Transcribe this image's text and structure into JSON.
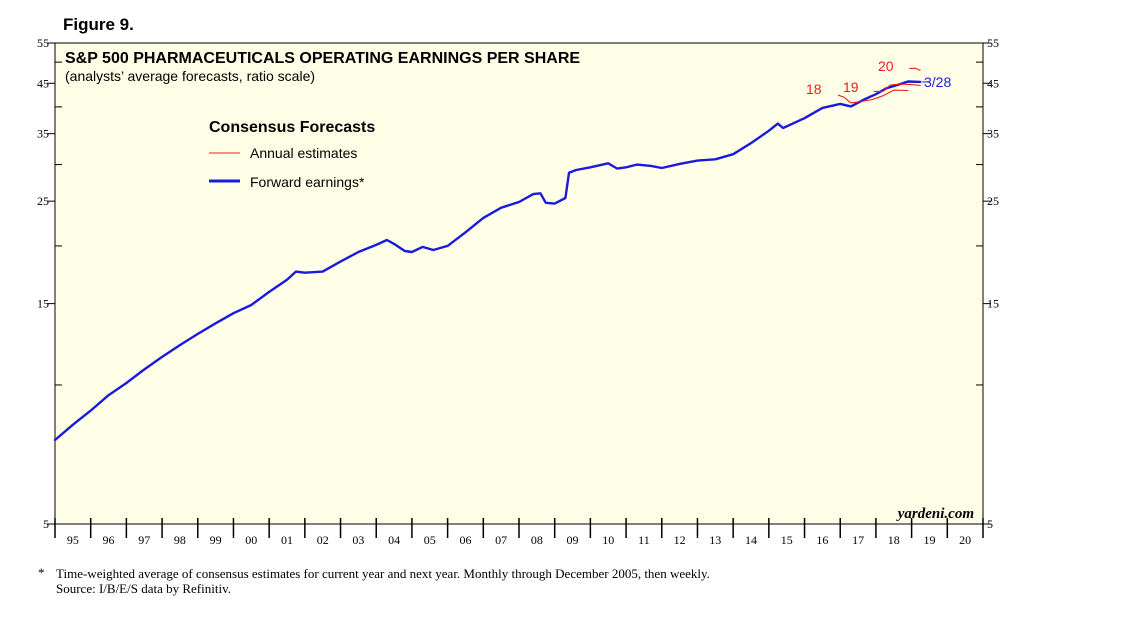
{
  "figure_label": "Figure 9.",
  "chart_data": {
    "type": "line",
    "title": "S&P 500 PHARMACEUTICALS OPERATING EARNINGS PER SHARE",
    "subtitle": "(analysts’ average forecasts, ratio scale)",
    "scale": "log",
    "ylim": [
      5,
      55
    ],
    "y_ticks": [
      5,
      15,
      25,
      35,
      45,
      55
    ],
    "y_tick_labels": [
      "5",
      "15",
      "25",
      "35",
      "45",
      "55"
    ],
    "x_range": [
      1995,
      2021
    ],
    "x_tick_labels": [
      "95",
      "96",
      "97",
      "98",
      "99",
      "00",
      "01",
      "02",
      "03",
      "04",
      "05",
      "06",
      "07",
      "08",
      "09",
      "10",
      "11",
      "12",
      "13",
      "14",
      "15",
      "16",
      "17",
      "18",
      "19",
      "20"
    ],
    "legend": {
      "title": "Consensus Forecasts",
      "entries": [
        {
          "label": "Annual estimates",
          "color": "#e8201c"
        },
        {
          "label": "Forward earnings*",
          "color": "#1a1adc"
        }
      ]
    },
    "series": [
      {
        "name": "Forward earnings*",
        "color": "#1a1adc",
        "points": [
          [
            1995.0,
            7.6
          ],
          [
            1995.5,
            8.2
          ],
          [
            1996.0,
            8.8
          ],
          [
            1996.5,
            9.5
          ],
          [
            1997.0,
            10.1
          ],
          [
            1997.5,
            10.8
          ],
          [
            1998.0,
            11.5
          ],
          [
            1998.5,
            12.2
          ],
          [
            1999.0,
            12.9
          ],
          [
            1999.5,
            13.6
          ],
          [
            2000.0,
            14.3
          ],
          [
            2000.5,
            14.9
          ],
          [
            2001.0,
            15.9
          ],
          [
            2001.5,
            16.9
          ],
          [
            2001.75,
            17.6
          ],
          [
            2002.0,
            17.5
          ],
          [
            2002.5,
            17.6
          ],
          [
            2003.0,
            18.5
          ],
          [
            2003.5,
            19.4
          ],
          [
            2004.0,
            20.1
          ],
          [
            2004.3,
            20.6
          ],
          [
            2004.5,
            20.2
          ],
          [
            2004.8,
            19.5
          ],
          [
            2005.0,
            19.4
          ],
          [
            2005.3,
            19.9
          ],
          [
            2005.6,
            19.6
          ],
          [
            2006.0,
            20.0
          ],
          [
            2006.5,
            21.4
          ],
          [
            2007.0,
            23.0
          ],
          [
            2007.5,
            24.2
          ],
          [
            2008.0,
            24.9
          ],
          [
            2008.4,
            25.9
          ],
          [
            2008.6,
            26.0
          ],
          [
            2008.75,
            24.8
          ],
          [
            2009.0,
            24.7
          ],
          [
            2009.3,
            25.4
          ],
          [
            2009.4,
            28.8
          ],
          [
            2009.6,
            29.2
          ],
          [
            2010.0,
            29.6
          ],
          [
            2010.5,
            30.2
          ],
          [
            2010.75,
            29.4
          ],
          [
            2011.0,
            29.6
          ],
          [
            2011.3,
            30.0
          ],
          [
            2011.7,
            29.8
          ],
          [
            2012.0,
            29.5
          ],
          [
            2012.5,
            30.1
          ],
          [
            2013.0,
            30.6
          ],
          [
            2013.5,
            30.8
          ],
          [
            2014.0,
            31.6
          ],
          [
            2014.5,
            33.4
          ],
          [
            2015.0,
            35.5
          ],
          [
            2015.25,
            36.8
          ],
          [
            2015.4,
            36.0
          ],
          [
            2016.0,
            37.8
          ],
          [
            2016.5,
            39.8
          ],
          [
            2017.0,
            40.6
          ],
          [
            2017.3,
            40.1
          ],
          [
            2017.7,
            41.6
          ],
          [
            2018.0,
            42.6
          ],
          [
            2018.3,
            43.9
          ],
          [
            2018.6,
            44.6
          ],
          [
            2018.9,
            45.4
          ],
          [
            2019.24,
            45.3
          ]
        ]
      },
      {
        "name": "18",
        "color": "#e8201c",
        "points": [
          [
            2016.95,
            42.4
          ],
          [
            2017.1,
            42.0
          ],
          [
            2017.3,
            40.8
          ],
          [
            2017.6,
            41.1
          ],
          [
            2017.9,
            41.5
          ],
          [
            2018.2,
            42.3
          ],
          [
            2018.5,
            43.5
          ],
          [
            2018.9,
            43.4
          ]
        ]
      },
      {
        "name": "19",
        "color": "#e8201c",
        "points": [
          [
            2017.95,
            43.2
          ],
          [
            2018.2,
            43.2
          ],
          [
            2018.4,
            44.6
          ],
          [
            2018.7,
            44.8
          ],
          [
            2019.0,
            44.7
          ],
          [
            2019.24,
            44.5
          ]
        ]
      },
      {
        "name": "20",
        "color": "#e8201c",
        "points": [
          [
            2018.95,
            48.4
          ],
          [
            2019.1,
            48.5
          ],
          [
            2019.24,
            48.0
          ]
        ]
      }
    ],
    "annotations": [
      "18",
      "19",
      "20",
      "3/28"
    ],
    "watermark": "yardeni.com"
  },
  "footnote": "Time-weighted average of consensus estimates for current year and next year. Monthly through December 2005, then weekly.",
  "source": "Source: I/B/E/S data by Refinitiv."
}
